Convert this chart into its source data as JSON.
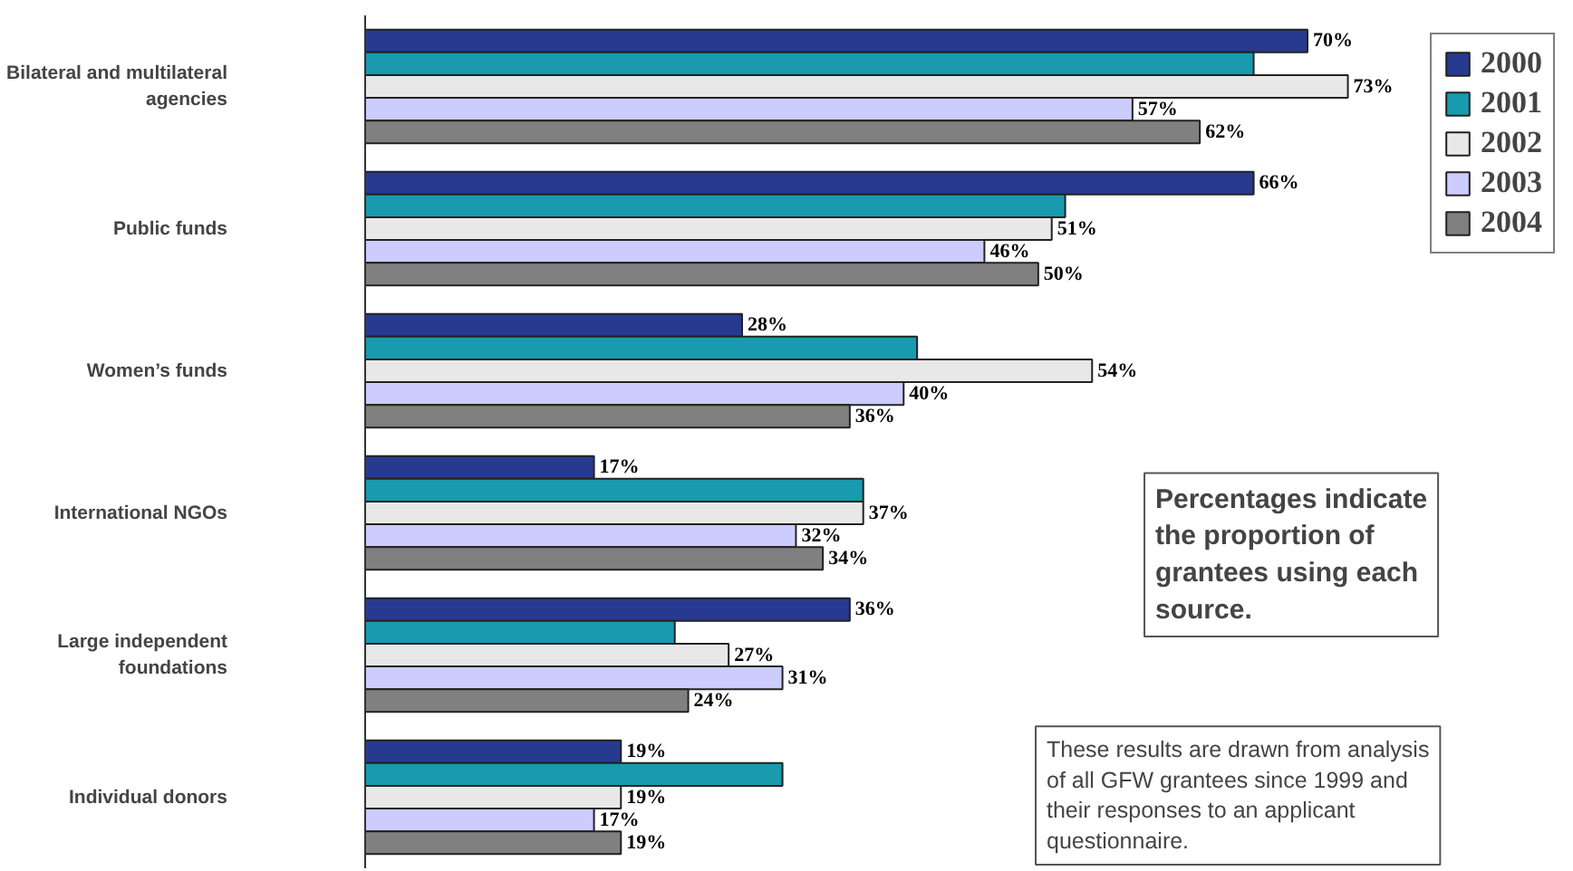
{
  "chart_data": {
    "type": "bar",
    "orientation": "horizontal",
    "categories": [
      "Bilateral and multilateral agencies",
      "Public funds",
      "Women’s funds",
      "International NGOs",
      "Large independent foundations",
      "Individual donors"
    ],
    "series": [
      {
        "name": "2000",
        "color": "#283a8f",
        "values": [
          70,
          66,
          28,
          17,
          36,
          19
        ],
        "value_labels": [
          "70%",
          "66%",
          "28%",
          "17%",
          "36%",
          "19%"
        ]
      },
      {
        "name": "2001",
        "color": "#199aae",
        "values": [
          66,
          52,
          41,
          37,
          23,
          31
        ],
        "value_labels": [
          null,
          null,
          null,
          null,
          null,
          null
        ]
      },
      {
        "name": "2002",
        "color": "#e8e8e8",
        "values": [
          73,
          51,
          54,
          37,
          27,
          19
        ],
        "value_labels": [
          "73%",
          "51%",
          "54%",
          "37%",
          "27%",
          "19%"
        ]
      },
      {
        "name": "2003",
        "color": "#ccccff",
        "values": [
          57,
          46,
          40,
          32,
          31,
          17
        ],
        "value_labels": [
          "57%",
          "46%",
          "40%",
          "32%",
          "31%",
          "17%"
        ]
      },
      {
        "name": "2004",
        "color": "#808080",
        "values": [
          62,
          50,
          36,
          34,
          24,
          19
        ],
        "value_labels": [
          "62%",
          "50%",
          "36%",
          "34%",
          "24%",
          "19%"
        ]
      }
    ],
    "legend": "top right",
    "grid": false,
    "annotations": [
      "Percentages indicate the proportion of grantees using each source.",
      "These results are drawn from analysis of all GFW grantees since 1999 and their responses to an applicant questionnaire."
    ]
  }
}
